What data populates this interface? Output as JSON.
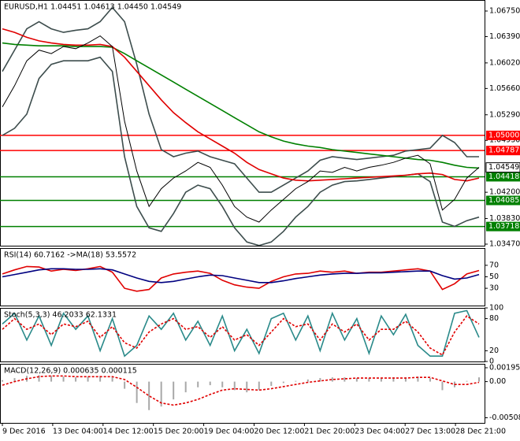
{
  "time_axis": [
    "9 Dec 2016",
    "13 Dec 04:00",
    "14 Dec 12:00",
    "15 Dec 20:00",
    "19 Dec 04:00",
    "20 Dec 12:00",
    "21 Dec 20:00",
    "23 Dec 04:00",
    "27 Dec 13:00",
    "28 Dec 21:00"
  ],
  "chart_data": [
    {
      "type": "line",
      "title": "EURUSD,H1  1.04451 1.04613 1.04450 1.04549",
      "ylim": [
        1.03448,
        1.06905
      ],
      "yticks": [
        {
          "value": 1.0675,
          "label": "1.06750"
        },
        {
          "value": 1.0639,
          "label": "1.06390"
        },
        {
          "value": 1.0602,
          "label": "1.06020"
        },
        {
          "value": 1.0566,
          "label": "1.05660"
        },
        {
          "value": 1.0529,
          "label": "1.05290"
        },
        {
          "value": 1.0493,
          "label": "1.04930"
        },
        {
          "value": 1.042,
          "label": "1.04200"
        },
        {
          "value": 1.0383,
          "label": "1.03830"
        },
        {
          "value": 1.0347,
          "label": "1.03470"
        }
      ],
      "levels": [
        {
          "value": 1.05,
          "label": "1.05000",
          "color": "#ff0000"
        },
        {
          "value": 1.04787,
          "label": "1.04787",
          "color": "#ff0000"
        },
        {
          "value": 1.04418,
          "label": "1.04418",
          "color": "#008000"
        },
        {
          "value": 1.04085,
          "label": "1.04085",
          "color": "#008000"
        },
        {
          "value": 1.03718,
          "label": "1.03718",
          "color": "#008000"
        }
      ],
      "current": {
        "value": 1.04549,
        "label": "1.04549"
      },
      "series": [
        {
          "color": "#3d4d4d",
          "values": [
            1.059,
            1.062,
            1.065,
            1.066,
            1.065,
            1.0645,
            1.0648,
            1.065,
            1.066,
            1.068,
            1.066,
            1.06,
            1.053,
            1.048,
            1.047,
            1.0475,
            1.0478,
            1.047,
            1.0465,
            1.046,
            1.044,
            1.042,
            1.042,
            1.043,
            1.044,
            1.045,
            1.0465,
            1.047,
            1.0468,
            1.0466,
            1.0468,
            1.047,
            1.0472,
            1.0478,
            1.048,
            1.0482,
            1.05,
            1.049,
            1.047,
            1.047
          ]
        },
        {
          "color": "#3d4d4d",
          "values": [
            1.05,
            1.051,
            1.053,
            1.058,
            1.06,
            1.0605,
            1.0605,
            1.0605,
            1.061,
            1.059,
            1.047,
            1.04,
            1.037,
            1.0365,
            1.039,
            1.042,
            1.043,
            1.0425,
            1.04,
            1.037,
            1.035,
            1.0345,
            1.035,
            1.0365,
            1.0385,
            1.04,
            1.042,
            1.043,
            1.0435,
            1.0436,
            1.0438,
            1.044,
            1.0442,
            1.0444,
            1.0446,
            1.0435,
            1.0378,
            1.0372,
            1.038,
            1.0385
          ]
        },
        {
          "color": "#008000",
          "values": [
            1.063,
            1.0628,
            1.0627,
            1.0626,
            1.0626,
            1.0626,
            1.0625,
            1.0625,
            1.0625,
            1.0624,
            1.0615,
            1.0605,
            1.0595,
            1.0585,
            1.0575,
            1.0565,
            1.0555,
            1.0545,
            1.0535,
            1.0525,
            1.0515,
            1.0505,
            1.0498,
            1.0492,
            1.0488,
            1.0485,
            1.0483,
            1.048,
            1.0478,
            1.0476,
            1.0474,
            1.0472,
            1.047,
            1.0468,
            1.0466,
            1.0465,
            1.0462,
            1.0458,
            1.0455,
            1.0454
          ]
        },
        {
          "color": "#e00000",
          "values": [
            1.065,
            1.0645,
            1.0638,
            1.0633,
            1.063,
            1.0628,
            1.0627,
            1.0627,
            1.0628,
            1.0625,
            1.061,
            1.059,
            1.057,
            1.055,
            1.0532,
            1.0518,
            1.0505,
            1.0495,
            1.0485,
            1.0475,
            1.0462,
            1.0452,
            1.0446,
            1.044,
            1.0437,
            1.0436,
            1.0437,
            1.0438,
            1.0439,
            1.044,
            1.0441,
            1.0442,
            1.0443,
            1.0444,
            1.0446,
            1.0447,
            1.0445,
            1.0438,
            1.0436,
            1.044
          ]
        },
        {
          "color": "#000000",
          "values": [
            1.054,
            1.057,
            1.0605,
            1.062,
            1.0615,
            1.0625,
            1.0622,
            1.063,
            1.064,
            1.0625,
            1.052,
            1.045,
            1.04,
            1.0425,
            1.044,
            1.045,
            1.0462,
            1.0455,
            1.043,
            1.04,
            1.0385,
            1.0378,
            1.0395,
            1.041,
            1.0425,
            1.0435,
            1.045,
            1.0448,
            1.0455,
            1.045,
            1.0455,
            1.0458,
            1.0462,
            1.0468,
            1.0472,
            1.046,
            1.0395,
            1.041,
            1.044,
            1.0455
          ]
        }
      ]
    },
    {
      "type": "line",
      "title": "RSI(14) 60.7162  ->MA(18) 53.5572",
      "ylim": [
        0,
        100
      ],
      "yticks": [
        70,
        50,
        30
      ],
      "series": [
        {
          "color": "#e00000",
          "values": [
            55,
            62,
            68,
            67,
            60,
            63,
            61,
            64,
            68,
            58,
            30,
            25,
            28,
            48,
            55,
            58,
            60,
            56,
            44,
            36,
            32,
            30,
            42,
            50,
            55,
            56,
            60,
            58,
            60,
            56,
            58,
            58,
            60,
            62,
            64,
            60,
            28,
            38,
            55,
            61
          ]
        },
        {
          "color": "#000080",
          "values": [
            50,
            54,
            58,
            62,
            64,
            64,
            63,
            63,
            64,
            62,
            55,
            48,
            42,
            40,
            42,
            46,
            50,
            53,
            52,
            48,
            44,
            40,
            40,
            43,
            47,
            50,
            53,
            55,
            56,
            56,
            57,
            57,
            58,
            59,
            60,
            60,
            52,
            46,
            48,
            54
          ]
        }
      ]
    },
    {
      "type": "line",
      "title": "Stoch(5,3,3) 46.2033 62.1331",
      "ylim": [
        0,
        100
      ],
      "yticks": [
        100,
        80,
        20,
        0
      ],
      "series": [
        {
          "color": "#2a8a8a",
          "values": [
            70,
            90,
            40,
            85,
            30,
            90,
            60,
            85,
            20,
            80,
            10,
            30,
            85,
            60,
            90,
            40,
            75,
            30,
            85,
            20,
            60,
            15,
            80,
            90,
            40,
            85,
            20,
            90,
            40,
            80,
            15,
            85,
            50,
            88,
            30,
            10,
            10,
            90,
            95,
            45
          ]
        },
        {
          "color": "#e00000",
          "dashed": true,
          "values": [
            60,
            80,
            60,
            70,
            50,
            70,
            65,
            75,
            45,
            65,
            35,
            25,
            55,
            70,
            80,
            60,
            65,
            45,
            65,
            40,
            50,
            30,
            55,
            80,
            65,
            70,
            40,
            70,
            55,
            70,
            40,
            60,
            60,
            75,
            55,
            25,
            12,
            55,
            85,
            70
          ]
        }
      ]
    },
    {
      "type": "line",
      "title": "MACD(12,26,9) 0.000635 0.000115",
      "ylim": [
        -0.0058,
        0.0025
      ],
      "yticks": [
        {
          "value": 0.00195,
          "label": "0.00195"
        },
        {
          "value": 0,
          "label": "0.00"
        },
        {
          "value": -0.00508,
          "label": "-0.00508"
        }
      ],
      "series": [
        {
          "color": "#a8a8a8",
          "histogram": true,
          "values": [
            0.0002,
            0.0005,
            0.0008,
            0.0009,
            0.0008,
            0.0007,
            0.0006,
            0.0007,
            0.0008,
            0.0006,
            -0.001,
            -0.003,
            -0.004,
            -0.0035,
            -0.0025,
            -0.0015,
            -0.0008,
            -0.0005,
            -0.0008,
            -0.0012,
            -0.0015,
            -0.0012,
            -0.0006,
            -0.0002,
            0.0001,
            0.0003,
            0.0005,
            0.0006,
            0.0006,
            0.0005,
            0.0005,
            0.0005,
            0.0006,
            0.0006,
            0.0007,
            0.0005,
            -0.0012,
            -0.0008,
            0.0001,
            0.0006
          ]
        },
        {
          "color": "#e00000",
          "dashed": true,
          "values": [
            -0.0005,
            0,
            0.0004,
            0.0007,
            0.0008,
            0.0008,
            0.0007,
            0.0007,
            0.0007,
            0.0007,
            0.0003,
            -0.0008,
            -0.002,
            -0.003,
            -0.0033,
            -0.003,
            -0.0025,
            -0.0018,
            -0.0012,
            -0.001,
            -0.0011,
            -0.0012,
            -0.001,
            -0.0007,
            -0.0004,
            -0.0001,
            0.0001,
            0.0003,
            0.0004,
            0.0005,
            0.0005,
            0.0005,
            0.0005,
            0.0005,
            0.0006,
            0.0006,
            0.0001,
            -0.0004,
            -0.0004,
            -0.0001
          ]
        }
      ]
    }
  ]
}
